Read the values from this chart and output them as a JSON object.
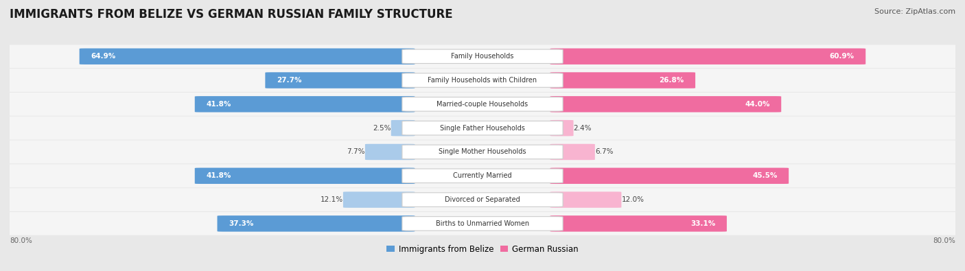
{
  "title": "IMMIGRANTS FROM BELIZE VS GERMAN RUSSIAN FAMILY STRUCTURE",
  "source": "Source: ZipAtlas.com",
  "categories": [
    "Family Households",
    "Family Households with Children",
    "Married-couple Households",
    "Single Father Households",
    "Single Mother Households",
    "Currently Married",
    "Divorced or Separated",
    "Births to Unmarried Women"
  ],
  "belize_values": [
    64.9,
    27.7,
    41.8,
    2.5,
    7.7,
    41.8,
    12.1,
    37.3
  ],
  "german_values": [
    60.9,
    26.8,
    44.0,
    2.4,
    6.7,
    45.5,
    12.0,
    33.1
  ],
  "belize_color_strong": "#5b9bd5",
  "belize_color_light": "#aacbea",
  "german_color_strong": "#f06ca0",
  "german_color_light": "#f8b4d0",
  "bg_color": "#e8e8e8",
  "row_bg_color": "#f5f5f5",
  "max_val": 80.0,
  "strong_threshold": 20.0,
  "legend_belize": "Immigrants from Belize",
  "legend_german": "German Russian",
  "title_fontsize": 12,
  "source_fontsize": 8,
  "bar_label_fontsize": 7.5,
  "cat_label_fontsize": 7.0,
  "tick_fontsize": 7.5
}
